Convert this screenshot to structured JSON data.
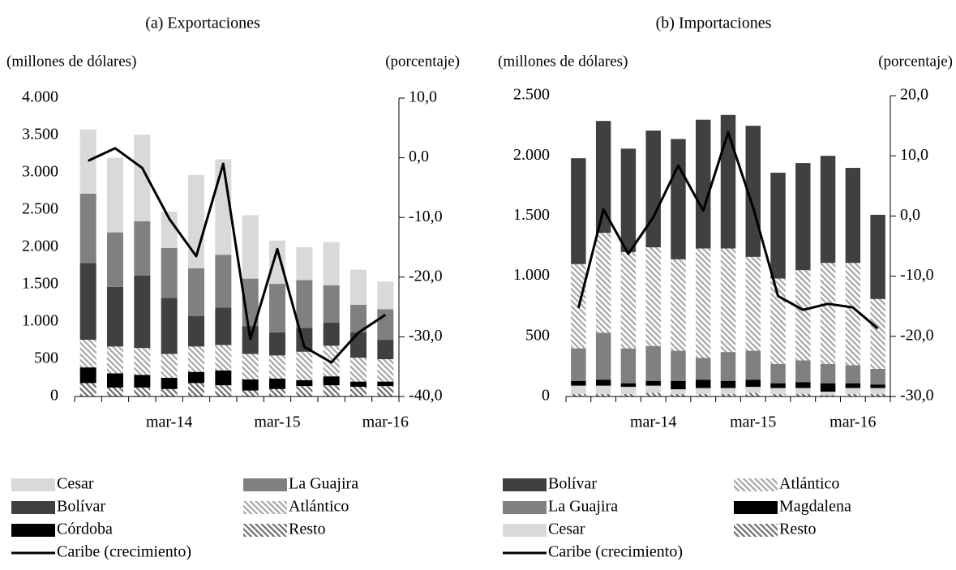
{
  "chart_data": [
    {
      "type": "bar",
      "stacked": true,
      "title": "(a) Exportaciones",
      "ylabel": "(millones de dólares)",
      "y2label": "(porcentaje)",
      "categories": [
        null,
        null,
        null,
        "mar-14",
        null,
        null,
        null,
        "mar-15",
        null,
        null,
        null,
        "mar-16"
      ],
      "ylim": [
        0,
        4000
      ],
      "yticks": [
        0,
        500,
        {
          "value": 1000,
          "label": "1.000"
        },
        {
          "value": 1500,
          "label": "1.500"
        },
        {
          "value": 2000,
          "label": "2.000"
        },
        {
          "value": 2500,
          "label": "2.500"
        },
        {
          "value": 3000,
          "label": "3.000"
        },
        {
          "value": 3500,
          "label": "3.500"
        },
        {
          "value": 4000,
          "label": "4.000"
        }
      ],
      "y2lim": [
        -40,
        10
      ],
      "y2ticks": [
        {
          "value": -40,
          "label": "-40,0"
        },
        {
          "value": -30,
          "label": "-30,0"
        },
        {
          "value": -20,
          "label": "-20,0"
        },
        {
          "value": -10,
          "label": "-10,0"
        },
        {
          "value": 0,
          "label": "0,0"
        },
        {
          "value": 10,
          "label": "10,0"
        }
      ],
      "series": [
        {
          "name": "Cesar",
          "color": "#d9d9d9",
          "values": [
            860,
            1000,
            1160,
            490,
            1250,
            1280,
            850,
            580,
            440,
            580,
            470,
            370
          ]
        },
        {
          "name": "La Guajira",
          "color": "#808080",
          "values": [
            930,
            730,
            730,
            670,
            640,
            710,
            640,
            650,
            640,
            500,
            370,
            410
          ]
        },
        {
          "name": "Bolívar",
          "color": "#404040",
          "values": [
            1030,
            800,
            970,
            750,
            410,
            500,
            370,
            310,
            320,
            310,
            340,
            260
          ]
        },
        {
          "name": "Atlántico",
          "color": "#a6a6a6",
          "pattern": "hatch",
          "values": [
            370,
            360,
            360,
            320,
            340,
            340,
            340,
            310,
            380,
            410,
            320,
            300
          ]
        },
        {
          "name": "Córdoba",
          "color": "#000000",
          "values": [
            210,
            190,
            170,
            150,
            150,
            200,
            150,
            140,
            80,
            120,
            70,
            60
          ]
        },
        {
          "name": "Resto",
          "color": "#6e6e6e",
          "pattern": "hatch",
          "values": [
            180,
            120,
            120,
            100,
            180,
            150,
            80,
            100,
            140,
            150,
            130,
            140
          ]
        },
        {
          "name": "Caribe (crecimiento)",
          "type": "line",
          "axis": "y2",
          "color": "#000000",
          "values": [
            -0.5,
            1.6,
            -1.7,
            -10.2,
            -16.5,
            -1.0,
            -30.4,
            -15.3,
            -31.7,
            -34.3,
            -29.3,
            -26.3
          ]
        }
      ]
    },
    {
      "type": "bar",
      "stacked": true,
      "title": "(b) Importaciones",
      "ylabel": "(millones de dólares)",
      "y2label": "(porcentaje)",
      "categories": [
        null,
        null,
        null,
        "mar-14",
        null,
        null,
        null,
        "mar-15",
        null,
        null,
        null,
        "mar-16",
        null
      ],
      "ylim": [
        0,
        2500
      ],
      "yticks": [
        0,
        500,
        {
          "value": 1000,
          "label": "1.000"
        },
        {
          "value": 1500,
          "label": "1.500"
        },
        {
          "value": 2000,
          "label": "2.000"
        },
        {
          "value": 2500,
          "label": "2.500"
        }
      ],
      "y2lim": [
        -30,
        20
      ],
      "y2ticks": [
        {
          "value": -30,
          "label": "-30,0"
        },
        {
          "value": -20,
          "label": "-20,0"
        },
        {
          "value": -10,
          "label": "-10,0"
        },
        {
          "value": 0,
          "label": "0,0"
        },
        {
          "value": 10,
          "label": "10,0"
        },
        {
          "value": 20,
          "label": "20,0"
        }
      ],
      "series": [
        {
          "name": "Bolívar",
          "color": "#404040",
          "values": [
            880,
            930,
            860,
            970,
            1000,
            1070,
            1110,
            1090,
            880,
            890,
            890,
            790,
            700
          ]
        },
        {
          "name": "Atlántico",
          "color": "#a6a6a6",
          "pattern": "hatch",
          "values": [
            700,
            830,
            800,
            820,
            760,
            910,
            860,
            780,
            710,
            750,
            840,
            850,
            580
          ]
        },
        {
          "name": "La Guajira",
          "color": "#808080",
          "values": [
            270,
            390,
            290,
            290,
            250,
            180,
            240,
            240,
            160,
            180,
            160,
            150,
            130
          ]
        },
        {
          "name": "Magdalena",
          "color": "#000000",
          "values": [
            40,
            50,
            30,
            40,
            70,
            70,
            60,
            60,
            40,
            50,
            70,
            40,
            30
          ]
        },
        {
          "name": "Cesar",
          "color": "#d9d9d9",
          "values": [
            70,
            70,
            60,
            60,
            40,
            50,
            50,
            50,
            50,
            50,
            30,
            50,
            50
          ]
        },
        {
          "name": "Resto",
          "color": "#6e6e6e",
          "pattern": "hatch",
          "values": [
            20,
            20,
            20,
            30,
            20,
            20,
            20,
            30,
            20,
            20,
            10,
            20,
            20
          ]
        },
        {
          "name": "Caribe (crecimiento)",
          "type": "line",
          "axis": "y2",
          "color": "#000000",
          "values": [
            -15.3,
            1.1,
            -6.3,
            -0.2,
            8.4,
            0.9,
            13.9,
            1.4,
            -13.3,
            -15.6,
            -14.6,
            -15.2,
            -18.7
          ]
        }
      ]
    }
  ]
}
